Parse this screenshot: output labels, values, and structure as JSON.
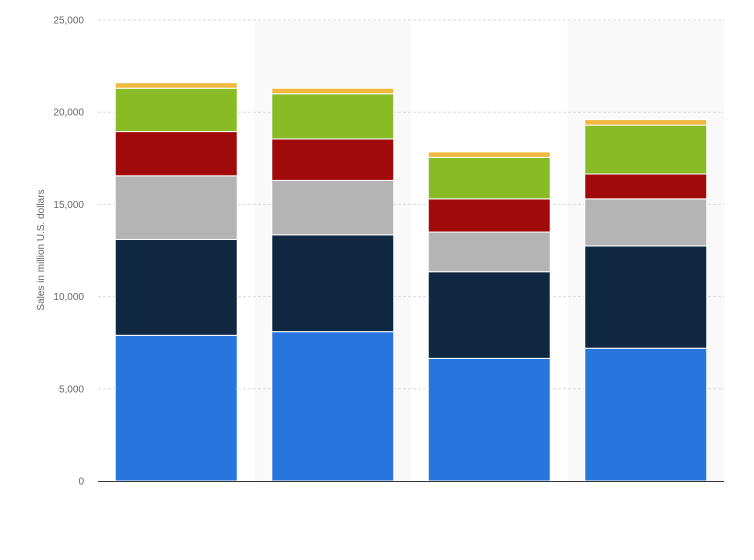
{
  "chart_data": {
    "type": "bar",
    "stacked": true,
    "title": "",
    "xlabel": "",
    "ylabel": "Sales in million U.S. dollars",
    "ylim": [
      0,
      25000
    ],
    "yticks": [
      0,
      5000,
      10000,
      15000,
      20000,
      25000
    ],
    "ytick_labels": [
      "0",
      "5,000",
      "10,000",
      "15,000",
      "20,000",
      "25,000"
    ],
    "grid": true,
    "legend": "none",
    "categories": [
      "",
      "",
      "",
      ""
    ],
    "series": [
      {
        "color": "#2876dd",
        "values": [
          7900,
          8100,
          6650,
          7200
        ]
      },
      {
        "color": "#0f2740",
        "values": [
          5200,
          5250,
          4700,
          5550
        ]
      },
      {
        "color": "#b4b4b4",
        "values": [
          3450,
          2950,
          2150,
          2550
        ]
      },
      {
        "color": "#a10a0a",
        "values": [
          2400,
          2250,
          1800,
          1350
        ]
      },
      {
        "color": "#88bb26",
        "values": [
          2350,
          2450,
          2250,
          2650
        ]
      },
      {
        "color": "#f0b93e",
        "values": [
          300,
          300,
          300,
          300
        ]
      }
    ]
  }
}
